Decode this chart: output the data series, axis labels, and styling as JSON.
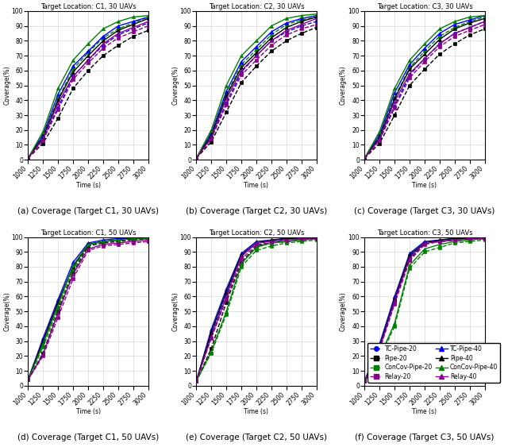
{
  "time": [
    1000,
    1250,
    1500,
    1750,
    2000,
    2250,
    2500,
    2750,
    3000
  ],
  "subplot_titles": [
    "Target Location: C1, 30 UAVs",
    "Target Location: C2, 30 UAVs",
    "Target Location: C3, 30 UAVs",
    "Target Location: C1, 50 UAVs",
    "Target Location: C2, 50 UAVs",
    "Target Location: C3, 50 UAVs"
  ],
  "subplot_labels": [
    "(a) Coverage (Target C1, 30 UAVs)",
    "(b) Coverage (Target C2, 30 UAVs)",
    "(c) Coverage (Target C3, 30 UAVs)",
    "(d) Coverage (Target C1, 50 UAVs)",
    "(e) Coverage (Target C2, 50 UAVs)",
    "(f) Coverage (Target C3, 50 UAVs)"
  ],
  "series_order": [
    "TC-Pipe-20",
    "Pipe-20",
    "ConCov-Pipe-20",
    "Relay-20",
    "TC-Pipe-40",
    "Pipe-40",
    "ConCov-Pipe-40",
    "Relay-40"
  ],
  "series": {
    "TC-Pipe-20": {
      "color": "#0000FF",
      "marker": "o",
      "linestyle": "--",
      "lw": 1.0
    },
    "Pipe-20": {
      "color": "#000000",
      "marker": "s",
      "linestyle": "--",
      "lw": 1.0
    },
    "ConCov-Pipe-20": {
      "color": "#008000",
      "marker": "s",
      "linestyle": "--",
      "lw": 1.0
    },
    "Relay-20": {
      "color": "#8B008B",
      "marker": "s",
      "linestyle": "--",
      "lw": 1.0
    },
    "TC-Pipe-40": {
      "color": "#0000FF",
      "marker": "^",
      "linestyle": "-",
      "lw": 1.0
    },
    "Pipe-40": {
      "color": "#000000",
      "marker": "^",
      "linestyle": "-",
      "lw": 1.0
    },
    "ConCov-Pipe-40": {
      "color": "#008000",
      "marker": "^",
      "linestyle": "-",
      "lw": 1.0
    },
    "Relay-40": {
      "color": "#8B008B",
      "marker": "^",
      "linestyle": "-",
      "lw": 1.0
    }
  },
  "data": {
    "0": {
      "TC-Pipe-20": [
        1,
        14,
        35,
        56,
        67,
        77,
        84,
        88,
        92
      ],
      "Pipe-20": [
        1,
        11,
        28,
        48,
        60,
        70,
        77,
        83,
        87
      ],
      "ConCov-Pipe-20": [
        1,
        16,
        41,
        61,
        72,
        82,
        88,
        92,
        96
      ],
      "Relay-20": [
        1,
        13,
        34,
        54,
        65,
        75,
        82,
        86,
        90
      ],
      "TC-Pipe-40": [
        1,
        17,
        44,
        63,
        73,
        83,
        90,
        93,
        96
      ],
      "Pipe-40": [
        1,
        15,
        40,
        59,
        70,
        80,
        87,
        91,
        95
      ],
      "ConCov-Pipe-40": [
        1,
        19,
        48,
        67,
        78,
        88,
        93,
        96,
        97
      ],
      "Relay-40": [
        1,
        14,
        38,
        56,
        67,
        78,
        85,
        89,
        93
      ]
    },
    "1": {
      "TC-Pipe-20": [
        1,
        15,
        38,
        59,
        70,
        80,
        86,
        90,
        93
      ],
      "Pipe-20": [
        1,
        12,
        32,
        52,
        63,
        73,
        80,
        85,
        89
      ],
      "ConCov-Pipe-20": [
        1,
        17,
        44,
        64,
        74,
        84,
        91,
        94,
        96
      ],
      "Relay-20": [
        1,
        14,
        37,
        57,
        67,
        77,
        84,
        88,
        91
      ],
      "TC-Pipe-40": [
        1,
        18,
        46,
        66,
        76,
        86,
        92,
        95,
        97
      ],
      "Pipe-40": [
        1,
        16,
        43,
        62,
        72,
        82,
        89,
        93,
        96
      ],
      "ConCov-Pipe-40": [
        1,
        20,
        50,
        70,
        80,
        90,
        95,
        97,
        98
      ],
      "Relay-40": [
        1,
        15,
        41,
        60,
        70,
        80,
        87,
        91,
        95
      ]
    },
    "2": {
      "TC-Pipe-20": [
        1,
        14,
        36,
        57,
        68,
        78,
        85,
        89,
        93
      ],
      "Pipe-20": [
        1,
        11,
        30,
        50,
        61,
        71,
        78,
        84,
        88
      ],
      "ConCov-Pipe-20": [
        1,
        16,
        42,
        62,
        73,
        83,
        89,
        93,
        96
      ],
      "Relay-20": [
        1,
        13,
        35,
        55,
        66,
        76,
        83,
        87,
        91
      ],
      "TC-Pipe-40": [
        1,
        17,
        45,
        64,
        75,
        85,
        91,
        94,
        97
      ],
      "Pipe-40": [
        1,
        15,
        41,
        61,
        71,
        81,
        88,
        92,
        95
      ],
      "ConCov-Pipe-40": [
        1,
        19,
        48,
        67,
        78,
        88,
        93,
        96,
        97
      ],
      "Relay-40": [
        1,
        14,
        39,
        58,
        68,
        78,
        85,
        89,
        93
      ]
    },
    "3": {
      "TC-Pipe-20": [
        4,
        30,
        56,
        80,
        95,
        97,
        98,
        99,
        99
      ],
      "Pipe-20": [
        4,
        22,
        50,
        76,
        94,
        96,
        97,
        98,
        99
      ],
      "ConCov-Pipe-20": [
        4,
        26,
        52,
        78,
        95,
        97,
        98,
        99,
        99
      ],
      "Relay-20": [
        4,
        20,
        46,
        72,
        91,
        94,
        95,
        96,
        97
      ],
      "TC-Pipe-40": [
        4,
        32,
        58,
        83,
        96,
        98,
        99,
        99,
        99
      ],
      "Pipe-40": [
        4,
        30,
        56,
        80,
        95,
        97,
        98,
        99,
        99
      ],
      "ConCov-Pipe-40": [
        4,
        28,
        54,
        81,
        95,
        97,
        98,
        99,
        99
      ],
      "Relay-40": [
        4,
        21,
        49,
        75,
        92,
        95,
        96,
        97,
        98
      ]
    },
    "4": {
      "TC-Pipe-20": [
        3,
        35,
        62,
        87,
        96,
        97,
        98,
        99,
        99
      ],
      "Pipe-20": [
        3,
        25,
        56,
        83,
        94,
        96,
        97,
        98,
        99
      ],
      "ConCov-Pipe-20": [
        3,
        22,
        48,
        80,
        91,
        94,
        96,
        97,
        98
      ],
      "Relay-20": [
        3,
        32,
        58,
        85,
        95,
        96,
        97,
        98,
        99
      ],
      "TC-Pipe-40": [
        3,
        38,
        65,
        89,
        97,
        98,
        99,
        99,
        99
      ],
      "Pipe-40": [
        3,
        36,
        63,
        88,
        96,
        98,
        99,
        99,
        99
      ],
      "ConCov-Pipe-40": [
        3,
        23,
        50,
        82,
        93,
        96,
        97,
        98,
        99
      ],
      "Relay-40": [
        3,
        33,
        60,
        87,
        96,
        97,
        98,
        99,
        99
      ]
    },
    "5": {
      "TC-Pipe-20": [
        3,
        25,
        56,
        87,
        96,
        97,
        98,
        99,
        99
      ],
      "Pipe-20": [
        3,
        27,
        58,
        85,
        96,
        97,
        98,
        99,
        99
      ],
      "ConCov-Pipe-20": [
        3,
        18,
        40,
        79,
        90,
        93,
        96,
        97,
        98
      ],
      "Relay-20": [
        3,
        24,
        55,
        84,
        95,
        97,
        98,
        99,
        99
      ],
      "TC-Pipe-40": [
        3,
        28,
        60,
        89,
        97,
        98,
        99,
        99,
        99
      ],
      "Pipe-40": [
        3,
        26,
        58,
        88,
        96,
        98,
        99,
        99,
        99
      ],
      "ConCov-Pipe-40": [
        3,
        19,
        42,
        81,
        92,
        95,
        97,
        98,
        99
      ],
      "Relay-40": [
        3,
        25,
        57,
        86,
        96,
        97,
        98,
        99,
        99
      ]
    }
  },
  "legend_entries_left": [
    "TC-Pipe-20",
    "Pipe-20",
    "ConCov-Pipe-20",
    "Relay-20"
  ],
  "legend_entries_right": [
    "TC-Pipe-40",
    "Pipe-40",
    "ConCov-Pipe-40",
    "Relay-40"
  ],
  "ylim": [
    0,
    100
  ],
  "yticks": [
    0,
    10,
    20,
    30,
    40,
    50,
    60,
    70,
    80,
    90,
    100
  ],
  "xticks": [
    1000,
    1250,
    1500,
    1750,
    2000,
    2250,
    2500,
    2750,
    3000
  ],
  "xlabel": "Time (s)",
  "ylabel": "Coverage(%)",
  "title_fontsize": 6.0,
  "label_fontsize": 7.5,
  "tick_fontsize": 5.5,
  "legend_fontsize": 5.5,
  "markersize": 3.0
}
